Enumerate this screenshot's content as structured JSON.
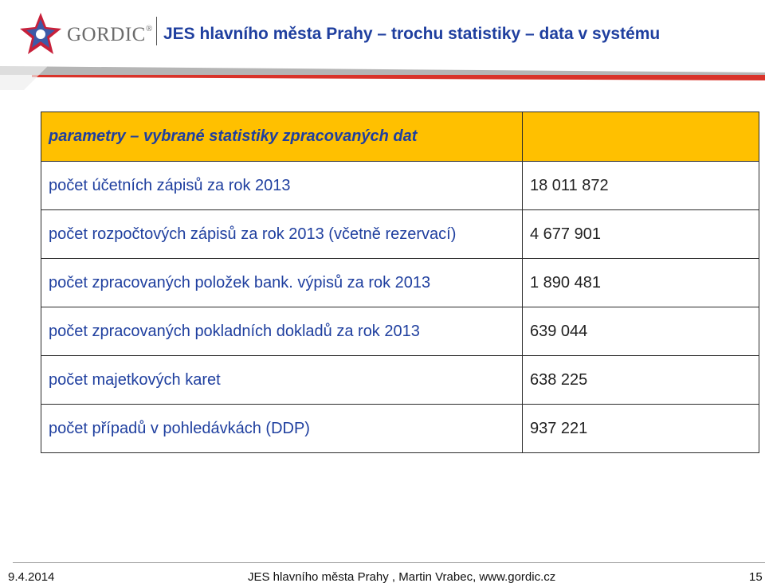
{
  "header": {
    "logo_text": "GORDIC",
    "logo_mark": "®",
    "title": "JES hlavního města Prahy – trochu statistiky – data v systému"
  },
  "table": {
    "heading": "parametry – vybrané statistiky zpracovaných dat",
    "rows": [
      {
        "label": "počet účetních zápisů za rok 2013",
        "value": "18 011 872"
      },
      {
        "label": "počet rozpočtových zápisů za rok 2013 (včetně rezervací)",
        "value": "4 677 901"
      },
      {
        "label": "počet zpracovaných položek bank. výpisů za rok 2013",
        "value": "1 890 481"
      },
      {
        "label": "počet zpracovaných pokladních dokladů za rok 2013",
        "value": "639 044"
      },
      {
        "label": "počet majetkových karet",
        "value": "638 225"
      },
      {
        "label": "počet případů v pohledávkách (DDP)",
        "value": "937 221"
      }
    ]
  },
  "footer": {
    "date": "9.4.2014",
    "center": "JES hlavního města Prahy , Martin Vrabec, www.gordic.cz",
    "page": "15"
  },
  "colors": {
    "accent_orange": "#ffc000",
    "title_blue": "#1f3f9f",
    "bar_red": "#d9332a"
  },
  "icons": [
    "gordic-logo-icon"
  ]
}
